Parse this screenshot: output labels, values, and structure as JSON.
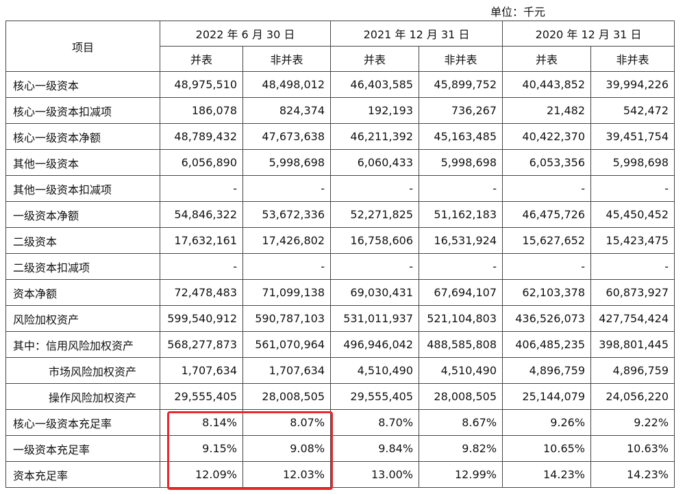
{
  "unit_label": "单位：千元",
  "header": {
    "item": "项目",
    "dates": [
      "2022 年 6 月 30 日",
      "2021 年 12 月 31 日",
      "2020 年 12 月 31 日"
    ],
    "sub": [
      "并表",
      "非并表",
      "并表",
      "非并表",
      "并表",
      "非并表"
    ]
  },
  "rows": [
    {
      "label": "核心一级资本",
      "values": [
        "48,975,510",
        "48,498,012",
        "46,403,585",
        "45,899,752",
        "40,443,852",
        "39,994,226"
      ]
    },
    {
      "label": "核心一级资本扣减项",
      "values": [
        "186,078",
        "824,374",
        "192,193",
        "736,267",
        "21,482",
        "542,472"
      ]
    },
    {
      "label": "核心一级资本净额",
      "values": [
        "48,789,432",
        "47,673,638",
        "46,211,392",
        "45,163,485",
        "40,422,370",
        "39,451,754"
      ]
    },
    {
      "label": "其他一级资本",
      "values": [
        "6,056,890",
        "5,998,698",
        "6,060,433",
        "5,998,698",
        "6,053,356",
        "5,998,698"
      ]
    },
    {
      "label": "其他一级资本扣减项",
      "values": [
        "-",
        "-",
        "-",
        "-",
        "-",
        "-"
      ]
    },
    {
      "label": "一级资本净额",
      "values": [
        "54,846,322",
        "53,672,336",
        "52,271,825",
        "51,162,183",
        "46,475,726",
        "45,450,452"
      ]
    },
    {
      "label": "二级资本",
      "values": [
        "17,632,161",
        "17,426,802",
        "16,758,606",
        "16,531,924",
        "15,627,652",
        "15,423,475"
      ]
    },
    {
      "label": "二级资本扣减项",
      "values": [
        "-",
        "-",
        "-",
        "-",
        "-",
        "-"
      ]
    },
    {
      "label": "资本净额",
      "values": [
        "72,478,483",
        "71,099,138",
        "69,030,431",
        "67,694,107",
        "62,103,378",
        "60,873,927"
      ]
    },
    {
      "label": "风险加权资产",
      "values": [
        "599,540,912",
        "590,787,103",
        "531,011,937",
        "521,104,803",
        "436,526,073",
        "427,754,424"
      ]
    },
    {
      "label": "其中：信用风险加权资产",
      "values": [
        "568,277,873",
        "561,070,964",
        "496,946,042",
        "488,585,808",
        "406,485,235",
        "398,801,445"
      ]
    },
    {
      "label": "市场风险加权资产",
      "values": [
        "1,707,634",
        "1,707,634",
        "4,510,490",
        "4,510,490",
        "4,896,759",
        "4,896,759"
      ]
    },
    {
      "label": "操作风险加权资产",
      "values": [
        "29,555,405",
        "28,008,505",
        "29,555,405",
        "28,008,505",
        "25,144,079",
        "24,056,220"
      ]
    },
    {
      "label": "核心一级资本充足率",
      "values": [
        "8.14%",
        "8.07%",
        "8.70%",
        "8.67%",
        "9.26%",
        "9.22%"
      ]
    },
    {
      "label": "一级资本充足率",
      "values": [
        "9.15%",
        "9.08%",
        "9.84%",
        "9.82%",
        "10.65%",
        "10.63%"
      ]
    },
    {
      "label": "资本充足率",
      "values": [
        "12.09%",
        "12.03%",
        "13.00%",
        "12.99%",
        "14.23%",
        "14.23%"
      ]
    }
  ],
  "colors": {
    "highlight": "#e8262b",
    "border": "#444444"
  }
}
